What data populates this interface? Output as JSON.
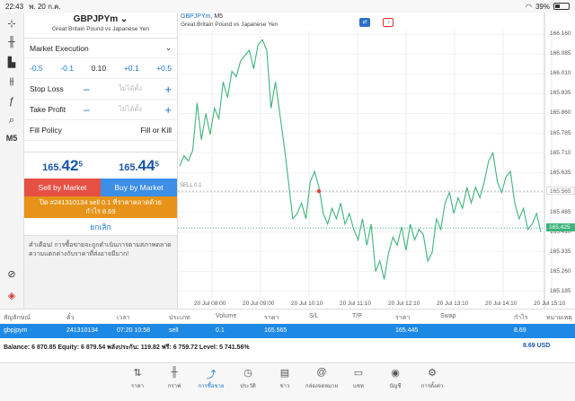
{
  "status": {
    "time": "22:43",
    "date": "พ. 20 ก.ค.",
    "battery": "39%",
    "battery_level": 0.39
  },
  "toolbar": {
    "tools": [
      "crosshair-icon",
      "candles-icon",
      "bars-icon",
      "indicators-icon",
      "function-icon",
      "objects-icon"
    ],
    "timeframe": "M5",
    "bottom_tools": [
      "search-icon",
      "mt5-icon"
    ]
  },
  "order": {
    "symbol": "GBPJPYm",
    "symbol_desc": "Great Britain Pound vs Japanese Yen",
    "execution": "Market Execution",
    "volume": {
      "minus2": "-0.5",
      "minus1": "-0.1",
      "value": "0.10",
      "plus1": "+0.1",
      "plus2": "+0.5"
    },
    "stop_loss_label": "Stop Loss",
    "take_profit_label": "Take Profit",
    "sl_placeholder": "ไม่ได้ตั้ง",
    "tp_placeholder": "ไม่ได้ตั้ง",
    "minus_sign": "–",
    "plus_sign": "+",
    "fill_policy_label": "Fill Policy",
    "fill_policy_value": "Fill or Kill",
    "bid": {
      "main": "165.",
      "big": "42",
      "sup": "5"
    },
    "ask": {
      "main": "165.",
      "big": "44",
      "sup": "5"
    },
    "sell_btn": "Sell by Market",
    "buy_btn": "Buy by Market",
    "close_btn_line1": "ปิด #241310134 sell 0.1 ที่ราคาตลาดด้วย",
    "close_btn_line2": "กำไร 8.69",
    "cancel": "ยกเลิก",
    "warning": "คำเตือน! การซื้อขายจะถูกดำเนินการตามสภาพตลาด ความแตกต่างกับราคาที่ส่งอาจมีมาก!"
  },
  "chart": {
    "symbol": "GBPJPYm",
    "tf": "M5",
    "desc": "Great Britain Pound vs Japanese Yen",
    "sell_line_label": "SELL 0.1",
    "sell_price_tag": "165.565",
    "bid_price_tag": "165.425"
  },
  "chart_data": {
    "type": "line",
    "ylim": [
      165.16,
      166.175
    ],
    "yticks": [
      "166.160",
      "166.085",
      "166.010",
      "165.935",
      "165.860",
      "165.785",
      "165.710",
      "165.635",
      "165.560",
      "165.485",
      "165.410",
      "165.335",
      "165.260",
      "165.185"
    ],
    "xticks": [
      "20 Jul 08:00",
      "20 Jul 09:00",
      "20 Jul 10:10",
      "20 Jul 11:10",
      "20 Jul 12:10",
      "20 Jul 13:10",
      "20 Jul 14:10",
      "20 Jul 15:10"
    ],
    "sell_price": 165.565,
    "bid_price": 165.425,
    "values": [
      165.66,
      165.7,
      165.68,
      165.72,
      165.9,
      165.76,
      165.86,
      165.78,
      165.88,
      165.84,
      165.98,
      165.92,
      166.02,
      166.0,
      166.06,
      166.08,
      166.1,
      166.03,
      166.12,
      166.14,
      166.1,
      165.88,
      165.98,
      165.86,
      165.74,
      165.6,
      165.46,
      165.48,
      165.52,
      165.46,
      165.6,
      165.64,
      165.58,
      165.48,
      165.44,
      165.5,
      165.46,
      165.52,
      165.44,
      165.48,
      165.42,
      165.38,
      165.46,
      165.36,
      165.44,
      165.26,
      165.3,
      165.23,
      165.33,
      165.39,
      165.36,
      165.43,
      165.34,
      165.44,
      165.38,
      165.42,
      165.4,
      165.3,
      165.33,
      165.46,
      165.42,
      165.52,
      165.56,
      165.48,
      165.54,
      165.5,
      165.58,
      165.52,
      165.58,
      165.54,
      165.6,
      165.68,
      165.71,
      165.6,
      165.56,
      165.62,
      165.64,
      165.52,
      165.46,
      165.5,
      165.42,
      165.44,
      165.48,
      165.41
    ]
  },
  "trades": {
    "headers": [
      "สัญลักษณ์",
      "ตั๋ว",
      "เวลา",
      "ประเภท",
      "Volume",
      "ราคา",
      "S/L",
      "T/P",
      "ราคา",
      "Swap",
      "กำไร",
      "หมายเหตุ"
    ],
    "row": [
      "gbpjpym",
      "241310134",
      "07:20 10:58",
      "sell",
      "0.1",
      "165.565",
      "",
      "",
      "165.445",
      "",
      "8.69",
      ""
    ],
    "balance": "Balance: 6 870.85 Equity: 6 879.54 พลังประกัน: 119.82 ฟรี: 6 759.72 Level: 5 741.56%",
    "profit": "8.69  USD"
  },
  "tabs": [
    {
      "icon": "quotes-icon",
      "label": "ราคา"
    },
    {
      "icon": "chart-icon",
      "label": "กราฟ"
    },
    {
      "icon": "trade-icon",
      "label": "การซื้อขาย"
    },
    {
      "icon": "history-icon",
      "label": "ประวัติ"
    },
    {
      "icon": "news-icon",
      "label": "ข่าว"
    },
    {
      "icon": "mailbox-icon",
      "label": "กล่องจดหมาย"
    },
    {
      "icon": "chat-icon",
      "label": "แชท"
    },
    {
      "icon": "account-icon",
      "label": "บัญชี"
    },
    {
      "icon": "settings-icon",
      "label": "การตั้งค่า"
    }
  ],
  "active_tab": 2
}
